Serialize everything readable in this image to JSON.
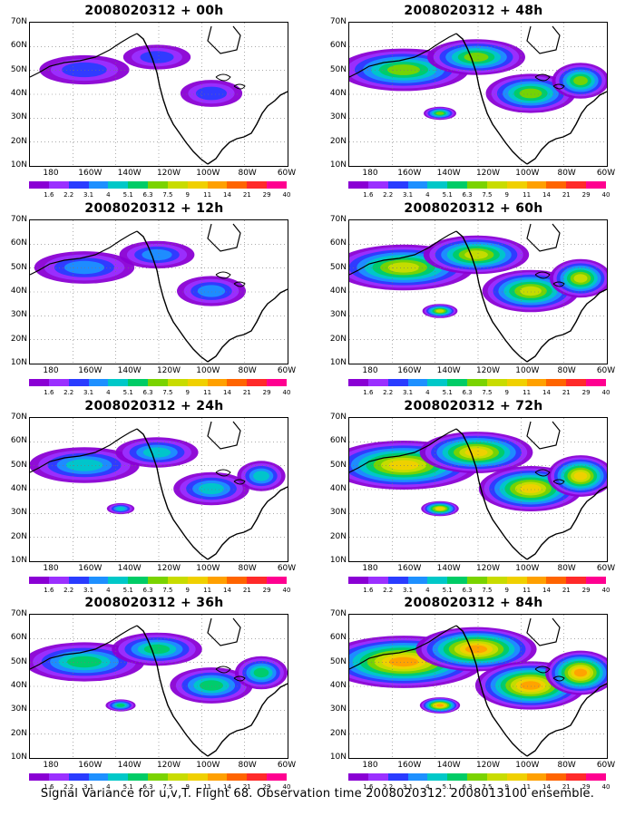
{
  "panels": [
    {
      "title": "2008020312 + 00h",
      "intensity": 1
    },
    {
      "title": "2008020312 + 48h",
      "intensity": 5
    },
    {
      "title": "2008020312 + 12h",
      "intensity": 2
    },
    {
      "title": "2008020312 + 60h",
      "intensity": 6
    },
    {
      "title": "2008020312 + 24h",
      "intensity": 3
    },
    {
      "title": "2008020312 + 72h",
      "intensity": 7
    },
    {
      "title": "2008020312 + 36h",
      "intensity": 4
    },
    {
      "title": "2008020312 + 84h",
      "intensity": 8
    }
  ],
  "lat_labels": [
    "70N",
    "60N",
    "50N",
    "40N",
    "30N",
    "20N",
    "10N"
  ],
  "lon_labels": [
    "180",
    "160W",
    "140W",
    "120W",
    "100W",
    "80W",
    "60W"
  ],
  "colorbar": {
    "labels": [
      "1.6",
      "2.2",
      "3.1",
      "4",
      "5.1",
      "6.3",
      "7.5",
      "9",
      "11",
      "14",
      "21",
      "29",
      "40"
    ],
    "colors": [
      "#ffffff",
      "#8a00d4",
      "#9b30ff",
      "#2a3cff",
      "#1e90ff",
      "#00c8c8",
      "#00cc66",
      "#7ad300",
      "#c8dc00",
      "#f0d000",
      "#ffa000",
      "#ff6400",
      "#ff2a2a",
      "#ff0090"
    ]
  },
  "caption": "Signal Variance for u,v,T. Flight 68. Observation time 2008020312. 2008013100 ensemble."
}
